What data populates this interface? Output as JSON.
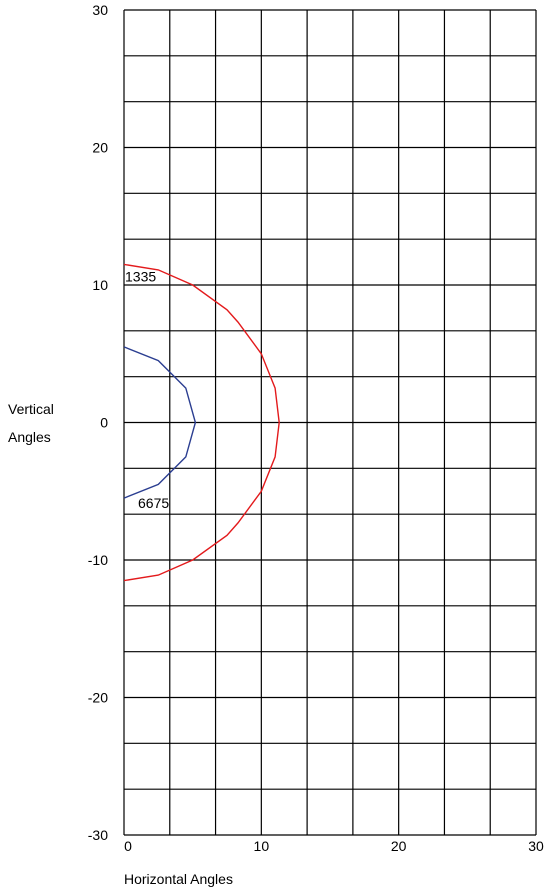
{
  "chart_data": {
    "type": "line",
    "title": "",
    "xlabel": "Horizontal Angles",
    "ylabel": [
      "Vertical",
      "Angles"
    ],
    "xlim": [
      0,
      30
    ],
    "ylim": [
      -30,
      30
    ],
    "x_ticks": [
      "0",
      "10",
      "20",
      "30"
    ],
    "y_ticks": [
      "30",
      "20",
      "10",
      "0",
      "-10",
      "-20",
      "-30"
    ],
    "grid": true,
    "series": [
      {
        "name": "1335",
        "color": "#e31a1c",
        "points": [
          [
            0,
            11.5
          ],
          [
            2.5,
            11.1
          ],
          [
            5,
            10
          ],
          [
            7.5,
            8.2
          ],
          [
            8.3,
            7.3
          ],
          [
            10,
            5
          ],
          [
            11,
            2.5
          ],
          [
            11.3,
            0
          ],
          [
            11,
            -2.5
          ],
          [
            10,
            -5
          ],
          [
            8.3,
            -7.3
          ],
          [
            7.5,
            -8.2
          ],
          [
            5,
            -10
          ],
          [
            2.5,
            -11.1
          ],
          [
            0,
            -11.5
          ]
        ]
      },
      {
        "name": "6675",
        "color": "#2b3e91",
        "points": [
          [
            0,
            5.5
          ],
          [
            2.5,
            4.5
          ],
          [
            4.5,
            2.5
          ],
          [
            5.2,
            0
          ],
          [
            4.5,
            -2.5
          ],
          [
            2.5,
            -4.5
          ],
          [
            0,
            -5.5
          ]
        ]
      }
    ]
  }
}
